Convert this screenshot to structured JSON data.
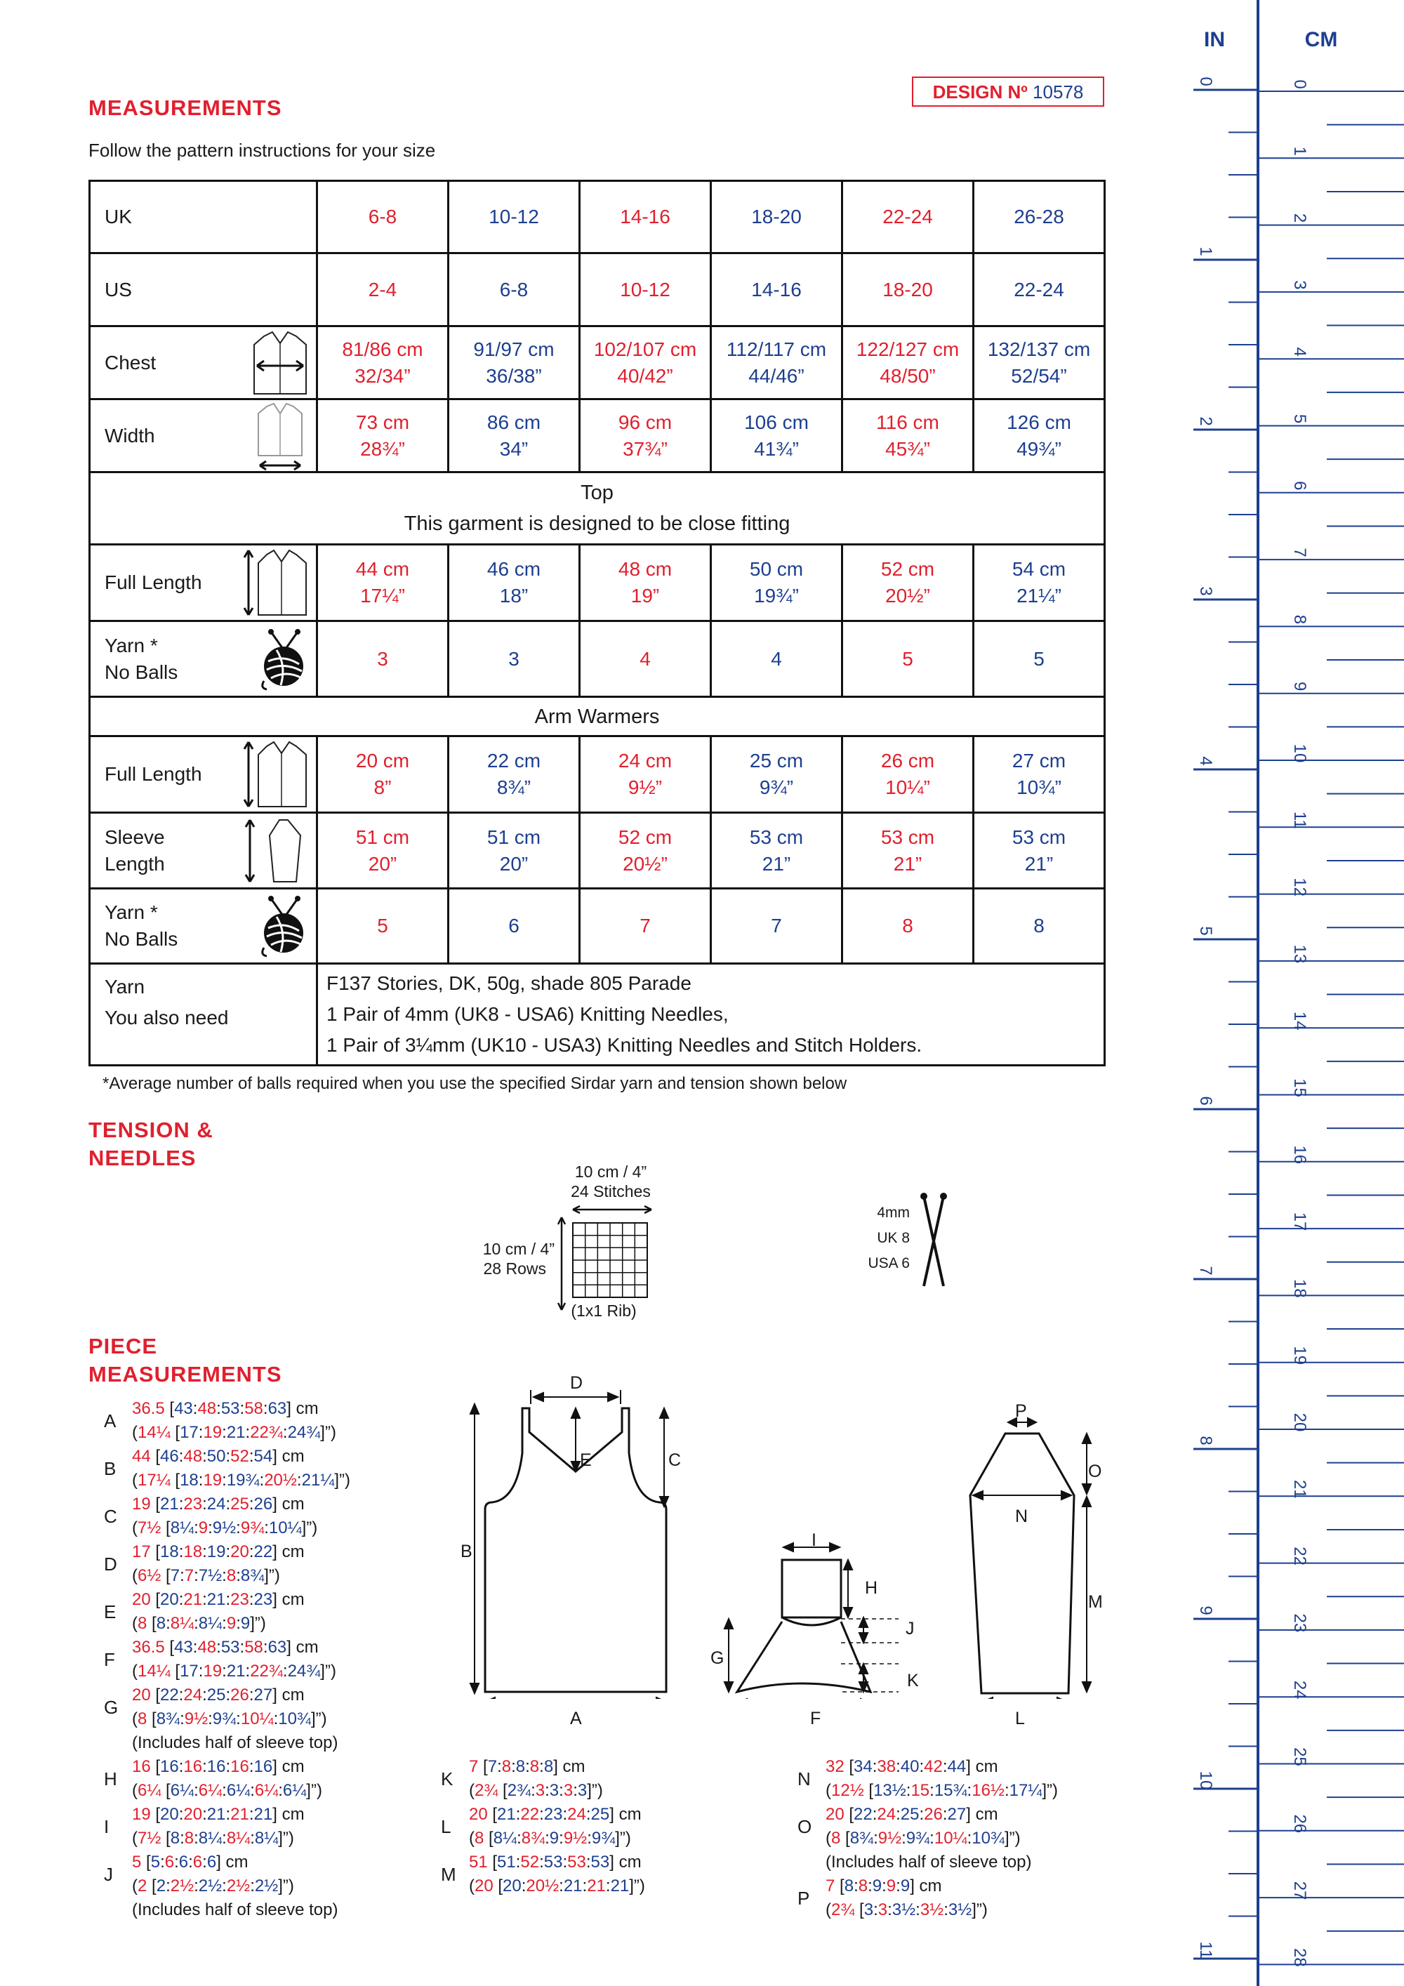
{
  "design": {
    "label": "DESIGN Nº",
    "number": "10578"
  },
  "measurements": {
    "heading": "MEASUREMENTS",
    "subtitle": "Follow the pattern instructions for your size",
    "rows": {
      "uk": {
        "label": "UK",
        "values": [
          "6-8",
          "10-12",
          "14-16",
          "18-20",
          "22-24",
          "26-28"
        ]
      },
      "us": {
        "label": "US",
        "values": [
          "2-4",
          "6-8",
          "10-12",
          "14-16",
          "18-20",
          "22-24"
        ]
      },
      "chest": {
        "label": "Chest",
        "values": [
          [
            "81/86 cm",
            "32/34”"
          ],
          [
            "91/97 cm",
            "36/38”"
          ],
          [
            "102/107 cm",
            "40/42”"
          ],
          [
            "112/117 cm",
            "44/46”"
          ],
          [
            "122/127 cm",
            "48/50”"
          ],
          [
            "132/137 cm",
            "52/54”"
          ]
        ]
      },
      "width": {
        "label": "Width",
        "values": [
          [
            "73 cm",
            "28¾”"
          ],
          [
            "86 cm",
            "34”"
          ],
          [
            "96 cm",
            "37¾”"
          ],
          [
            "106 cm",
            "41¾”"
          ],
          [
            "116 cm",
            "45¾”"
          ],
          [
            "126 cm",
            "49¾”"
          ]
        ]
      }
    },
    "top_section": {
      "title": "Top",
      "note": "This garment is designed to be close fitting"
    },
    "top_rows": {
      "full_length": {
        "label": "Full Length",
        "values": [
          [
            "44 cm",
            "17¼”"
          ],
          [
            "46 cm",
            "18”"
          ],
          [
            "48 cm",
            "19”"
          ],
          [
            "50 cm",
            "19¾”"
          ],
          [
            "52 cm",
            "20½”"
          ],
          [
            "54 cm",
            "21¼”"
          ]
        ]
      },
      "yarn": {
        "label1": "Yarn *",
        "label2": "No Balls",
        "values": [
          "3",
          "3",
          "4",
          "4",
          "5",
          "5"
        ]
      }
    },
    "arm_section": {
      "title": "Arm Warmers"
    },
    "arm_rows": {
      "full_length": {
        "label": "Full Length",
        "values": [
          [
            "20 cm",
            "8”"
          ],
          [
            "22 cm",
            "8¾”"
          ],
          [
            "24 cm",
            "9½”"
          ],
          [
            "25 cm",
            "9¾”"
          ],
          [
            "26 cm",
            "10¼”"
          ],
          [
            "27 cm",
            "10¾”"
          ]
        ]
      },
      "sleeve": {
        "label1": "Sleeve",
        "label2": "Length",
        "values": [
          [
            "51 cm",
            "20”"
          ],
          [
            "51 cm",
            "20”"
          ],
          [
            "52 cm",
            "20½”"
          ],
          [
            "53 cm",
            "21”"
          ],
          [
            "53 cm",
            "21”"
          ],
          [
            "53 cm",
            "21”"
          ]
        ]
      },
      "yarn": {
        "label1": "Yarn *",
        "label2": "No Balls",
        "values": [
          "5",
          "6",
          "7",
          "7",
          "8",
          "8"
        ]
      }
    },
    "yarn_info": {
      "label1": "Yarn",
      "label2": "You also need",
      "line1": "F137 Stories, DK, 50g, shade 805 Parade",
      "line2": "1 Pair of 4mm (UK8 - USA6) Knitting Needles,",
      "line3": "1 Pair of 3¼mm (UK10 - USA3) Knitting Needles and Stitch Holders."
    },
    "footnote": "*Average number of balls required when you use the specified Sirdar yarn and tension shown below"
  },
  "tension": {
    "heading1": "TENSION &",
    "heading2": "NEEDLES",
    "width_label": "10 cm / 4”",
    "stitches": "24 Stitches",
    "height_label": "10 cm / 4”",
    "rows": "28 Rows",
    "stitch": "(1x1 Rib)",
    "needle_mm": "4mm",
    "needle_uk": "UK 8",
    "needle_usa": "USA 6"
  },
  "pieces": {
    "heading1": "PIECE",
    "heading2": "MEASUREMENTS",
    "items": [
      {
        "letter": "A",
        "first": "36.5",
        "rest": [
          "43",
          "48",
          "53",
          "58",
          "63"
        ],
        "unit": "cm",
        "ifirst": "14¼",
        "irest": [
          "17",
          "19",
          "21",
          "22¾",
          "24¾"
        ],
        "note": ""
      },
      {
        "letter": "B",
        "first": "44",
        "rest": [
          "46",
          "48",
          "50",
          "52",
          "54"
        ],
        "unit": "cm",
        "ifirst": "17¼",
        "irest": [
          "18",
          "19",
          "19¾",
          "20½",
          "21¼"
        ],
        "note": ""
      },
      {
        "letter": "C",
        "first": "19",
        "rest": [
          "21",
          "23",
          "24",
          "25",
          "26"
        ],
        "unit": "cm",
        "ifirst": "7½",
        "irest": [
          "8¼",
          "9",
          "9½",
          "9¾",
          "10¼"
        ],
        "note": ""
      },
      {
        "letter": "D",
        "first": "17",
        "rest": [
          "18",
          "18",
          "19",
          "20",
          "22"
        ],
        "unit": "cm",
        "ifirst": "6½",
        "irest": [
          "7",
          "7",
          "7½",
          "8",
          "8¾"
        ],
        "note": ""
      },
      {
        "letter": "E",
        "first": "20",
        "rest": [
          "20",
          "21",
          "21",
          "23",
          "23"
        ],
        "unit": "cm",
        "ifirst": "8",
        "irest": [
          "8",
          "8¼",
          "8¼",
          "9",
          "9"
        ],
        "note": ""
      },
      {
        "letter": "F",
        "first": "36.5",
        "rest": [
          "43",
          "48",
          "53",
          "58",
          "63"
        ],
        "unit": "cm",
        "ifirst": "14¼",
        "irest": [
          "17",
          "19",
          "21",
          "22¾",
          "24¾"
        ],
        "note": ""
      },
      {
        "letter": "G",
        "first": "20",
        "rest": [
          "22",
          "24",
          "25",
          "26",
          "27"
        ],
        "unit": "cm",
        "ifirst": "8",
        "irest": [
          "8¾",
          "9½",
          "9¾",
          "10¼",
          "10¾"
        ],
        "note": "(Includes half of sleeve top)"
      },
      {
        "letter": "H",
        "first": "16",
        "rest": [
          "16",
          "16",
          "16",
          "16",
          "16"
        ],
        "unit": "cm",
        "ifirst": "6¼",
        "irest": [
          "6¼",
          "6¼",
          "6¼",
          "6¼",
          "6¼"
        ],
        "note": ""
      },
      {
        "letter": "I",
        "first": "19",
        "rest": [
          "20",
          "20",
          "21",
          "21",
          "21"
        ],
        "unit": "cm",
        "ifirst": "7½",
        "irest": [
          "8",
          "8",
          "8¼",
          "8¼",
          "8¼"
        ],
        "note": ""
      },
      {
        "letter": "J",
        "first": "5",
        "rest": [
          "5",
          "6",
          "6",
          "6",
          "6"
        ],
        "unit": "cm",
        "ifirst": "2",
        "irest": [
          "2",
          "2½",
          "2½",
          "2½",
          "2½"
        ],
        "note": "(Includes half of sleeve top)"
      },
      {
        "letter": "K",
        "first": "7",
        "rest": [
          "7",
          "8",
          "8",
          "8",
          "8"
        ],
        "unit": "cm",
        "ifirst": "2¾",
        "irest": [
          "2¾",
          "3",
          "3",
          "3",
          "3"
        ],
        "note": ""
      },
      {
        "letter": "L",
        "first": "20",
        "rest": [
          "21",
          "22",
          "23",
          "24",
          "25"
        ],
        "unit": "cm",
        "ifirst": "8",
        "irest": [
          "8¼",
          "8¾",
          "9",
          "9½",
          "9¾"
        ],
        "note": ""
      },
      {
        "letter": "M",
        "first": "51",
        "rest": [
          "51",
          "52",
          "53",
          "53",
          "53"
        ],
        "unit": "cm",
        "ifirst": "20",
        "irest": [
          "20",
          "20½",
          "21",
          "21",
          "21"
        ],
        "note": ""
      },
      {
        "letter": "N",
        "first": "32",
        "rest": [
          "34",
          "38",
          "40",
          "42",
          "44"
        ],
        "unit": "cm",
        "ifirst": "12½",
        "irest": [
          "13½",
          "15",
          "15¾",
          "16½",
          "17¼"
        ],
        "note": ""
      },
      {
        "letter": "O",
        "first": "20",
        "rest": [
          "22",
          "24",
          "25",
          "26",
          "27"
        ],
        "unit": "cm",
        "ifirst": "8",
        "irest": [
          "8¾",
          "9½",
          "9¾",
          "10¼",
          "10¾"
        ],
        "note": "(Includes half of sleeve top)"
      },
      {
        "letter": "P",
        "first": "7",
        "rest": [
          "8",
          "8",
          "9",
          "9",
          "9"
        ],
        "unit": "cm",
        "ifirst": "2¾",
        "irest": [
          "3",
          "3",
          "3½",
          "3½",
          "3½"
        ],
        "note": ""
      }
    ]
  },
  "diagram_labels": {
    "A": "A",
    "B": "B",
    "C": "C",
    "D": "D",
    "E": "E",
    "F": "F",
    "G": "G",
    "H": "H",
    "I": "I",
    "J": "J",
    "K": "K",
    "L": "L",
    "M": "M",
    "N": "N",
    "O": "O",
    "P": "P"
  },
  "ruler": {
    "in_label": "IN",
    "cm_label": "CM",
    "inches": [
      "0",
      "1",
      "2",
      "3",
      "4",
      "5",
      "6",
      "7",
      "8",
      "9",
      "10",
      "11"
    ],
    "cms": [
      "0",
      "1",
      "2",
      "3",
      "4",
      "5",
      "6",
      "7",
      "8",
      "9",
      "10",
      "11",
      "12",
      "13",
      "14",
      "15",
      "16",
      "17",
      "18",
      "19",
      "20",
      "21",
      "22",
      "23",
      "24",
      "25",
      "26",
      "27",
      "28"
    ]
  }
}
